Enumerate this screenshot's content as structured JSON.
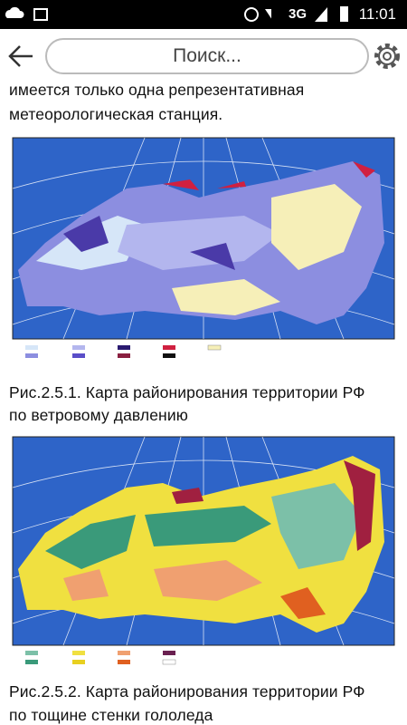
{
  "status_bar": {
    "network": "3G",
    "time": "11:01"
  },
  "toolbar": {
    "search_placeholder": "Поиск..."
  },
  "content": {
    "paragraph": [
      "имеется только одна репрезентативная",
      "метеорологическая станция."
    ],
    "figures": [
      {
        "caption": [
          "Рис.2.5.1. Карта районирования территории РФ",
          "по ветровому давлению"
        ]
      },
      {
        "caption": [
          "Рис.2.5.2. Карта районирования территории РФ",
          "по тощине стенки гололеда"
        ]
      }
    ]
  }
}
